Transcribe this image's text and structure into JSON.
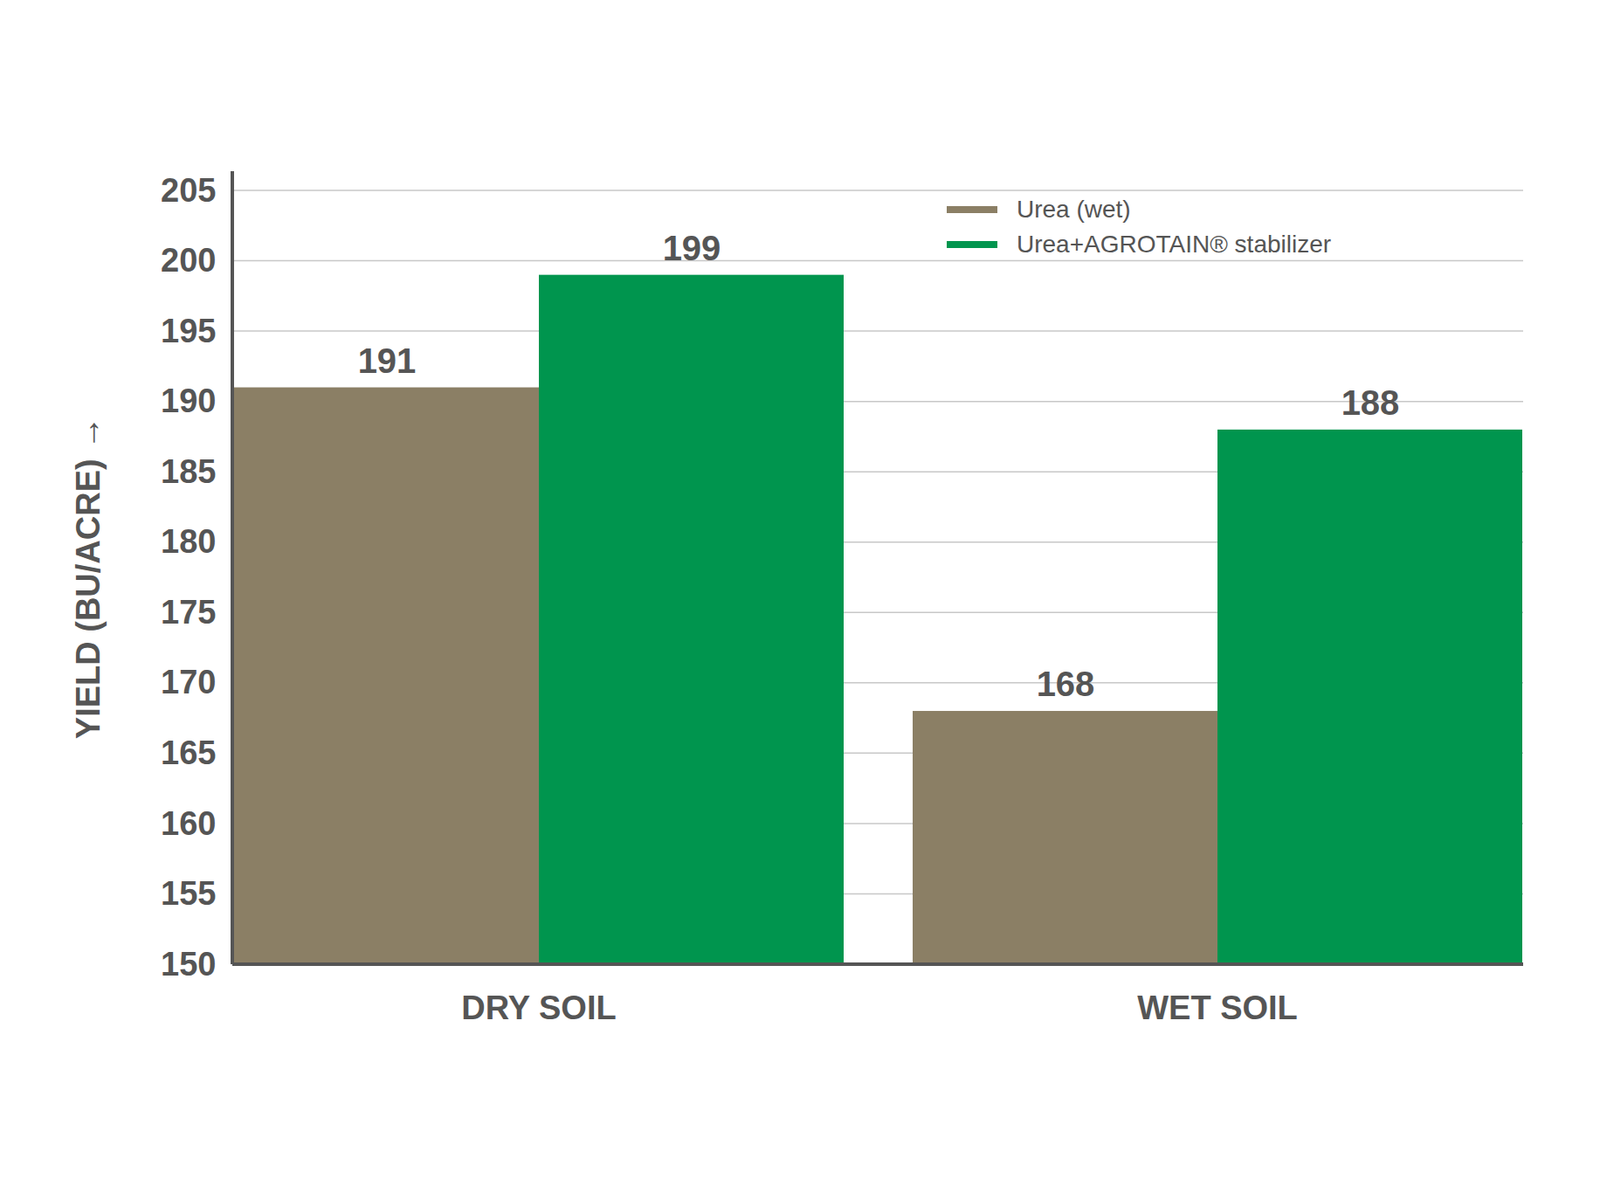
{
  "chart_data": {
    "type": "bar",
    "categories": [
      "DRY SOIL",
      "WET SOIL"
    ],
    "series": [
      {
        "name": "Urea (wet)",
        "color": "#8b7f65",
        "values": [
          191,
          168
        ]
      },
      {
        "name": "Urea+AGROTAIN® stabilizer",
        "color": "#00954e",
        "values": [
          199,
          188
        ]
      }
    ],
    "y_label": "YIELD (BU/ACRE)",
    "ylim": [
      150,
      205
    ],
    "yticks": [
      150,
      155,
      160,
      165,
      170,
      175,
      180,
      185,
      190,
      195,
      200,
      205
    ],
    "grid": true,
    "legend": "upper right",
    "data_labels": true
  }
}
